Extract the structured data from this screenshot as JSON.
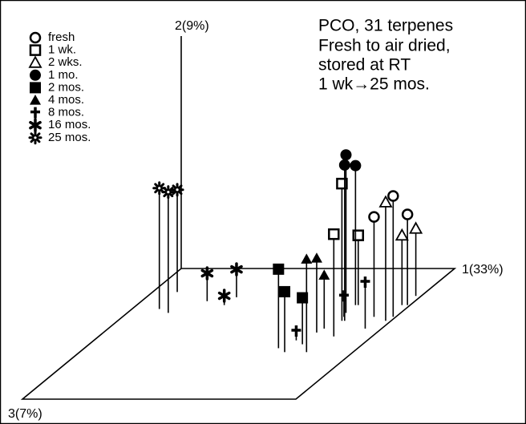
{
  "chart_data": {
    "type": "scatter3d",
    "annotation": [
      "PCO, 31 terpenes",
      "Fresh to air dried,",
      "stored at RT",
      "1 wk→25 mos."
    ],
    "x_label": "1(33%)",
    "y_label": "2(9%)",
    "z_label": "3(7%)",
    "xlim": [
      0,
      100
    ],
    "ylim": [
      0,
      100
    ],
    "zlim": [
      0,
      100
    ],
    "color": "#000000",
    "series": [
      {
        "name": "fresh",
        "marker": "circle-open",
        "x": [
          92,
          99,
          99
        ],
        "values": [
          43,
          52,
          39
        ],
        "z": [
          37,
          37,
          28
        ]
      },
      {
        "name": "1 wk.",
        "marker": "square-open",
        "x": [
          82,
          86,
          81
        ],
        "values": [
          59,
          44,
          30
        ],
        "z": [
          40,
          52,
          28
        ]
      },
      {
        "name": "2 wks.",
        "marker": "triangle-open",
        "x": [
          98,
          97,
          98
        ],
        "values": [
          51,
          30,
          29
        ],
        "z": [
          40,
          28,
          21
        ]
      },
      {
        "name": "1 mo.",
        "marker": "circle",
        "x": [
          80,
          83,
          80
        ],
        "values": [
          68,
          67,
          60
        ],
        "z": [
          34,
          40,
          28
        ]
      },
      {
        "name": "2 mos.",
        "marker": "square",
        "x": [
          71,
          75,
          78
        ],
        "values": [
          34,
          26,
          20
        ],
        "z": [
          61,
          64,
          58
        ]
      },
      {
        "name": "4 mos.",
        "marker": "triangle",
        "x": [
          83,
          78,
          79
        ],
        "values": [
          40,
          32,
          23
        ],
        "z": [
          64,
          49,
          46
        ]
      },
      {
        "name": "8 mos.",
        "marker": "plus",
        "x": [
          74,
          81,
          94
        ],
        "values": [
          4,
          9,
          20
        ],
        "z": [
          55,
          37,
          46
        ]
      },
      {
        "name": "16 mos.",
        "marker": "asterisk",
        "x": [
          24,
          32,
          33
        ],
        "values": [
          12,
          4,
          12
        ],
        "z": [
          25,
          28,
          22
        ]
      },
      {
        "name": "25 mos.",
        "marker": "flake",
        "x": [
          10,
          15,
          9
        ],
        "values": [
          52,
          52,
          44
        ],
        "z": [
          31,
          34,
          18
        ]
      }
    ]
  }
}
